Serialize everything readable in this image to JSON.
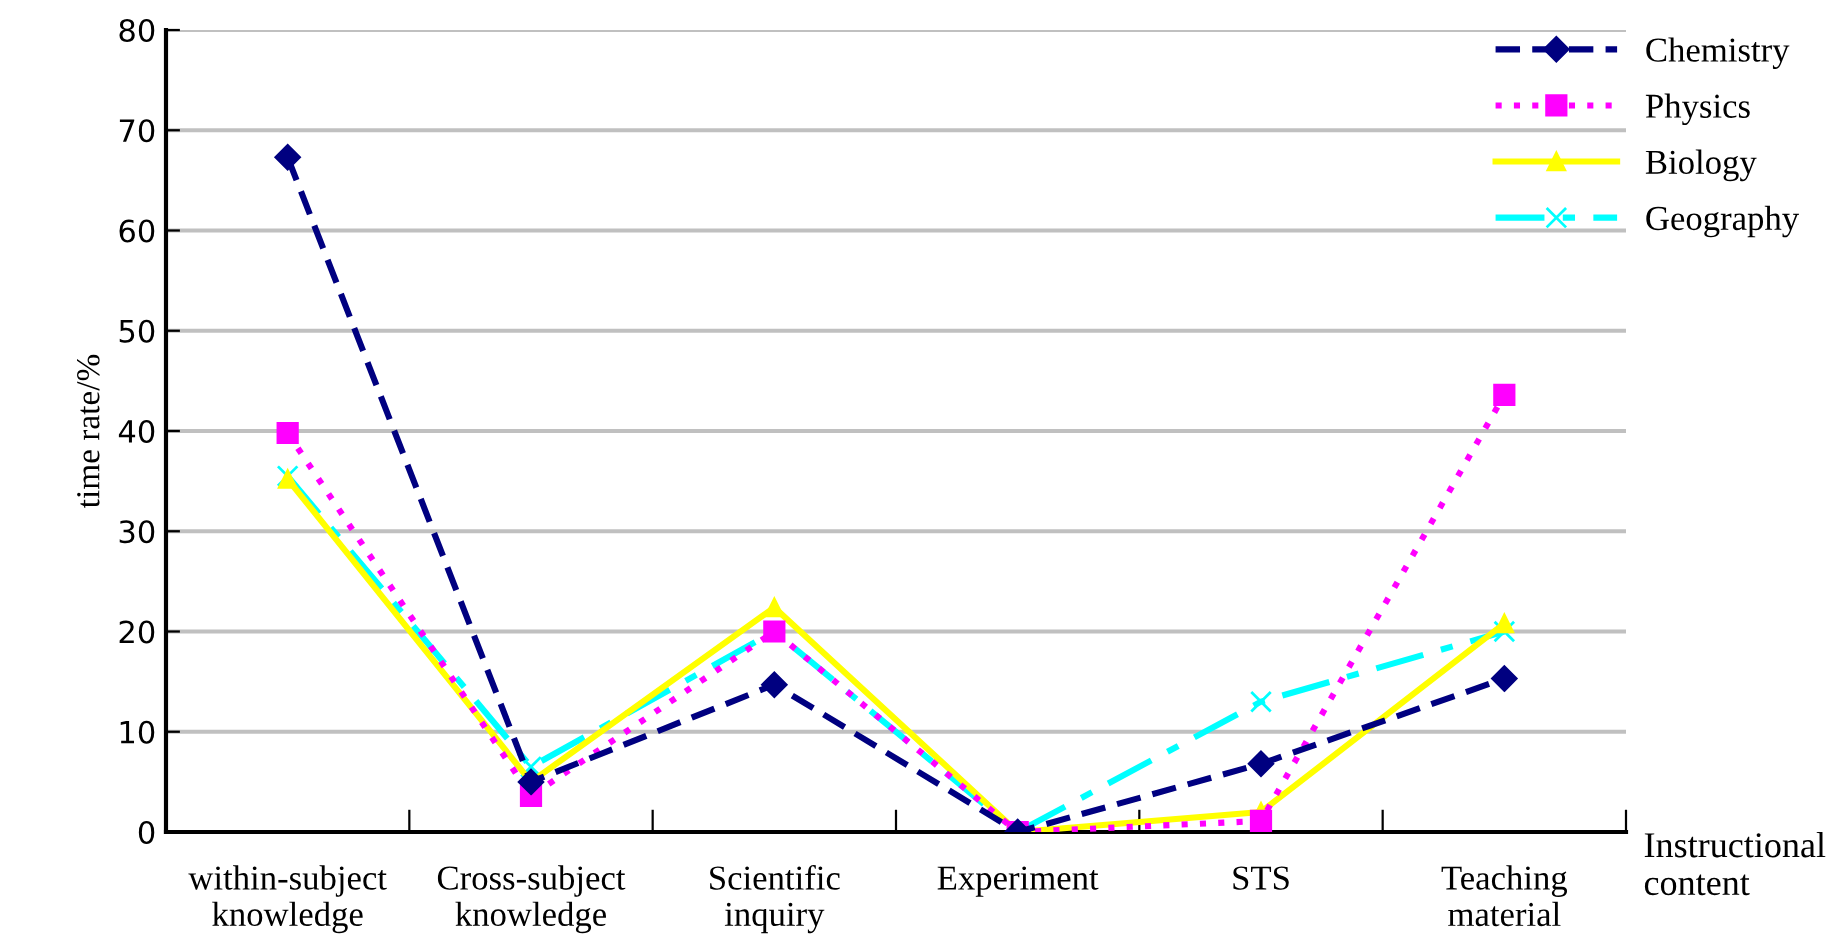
{
  "chart_data": {
    "type": "line",
    "xlabel": "Instructional content",
    "ylabel": "time rate/%",
    "categories": [
      "within-subject\nknowledge",
      "Cross-subject\nknowledge",
      "Scientific\ninquiry",
      "Experiment",
      "STS",
      "Teaching\nmaterial"
    ],
    "series": [
      {
        "name": "Chemistry",
        "color": "#000080",
        "marker": "diamond",
        "line_style": "dashed",
        "values": [
          67.3,
          5,
          14.7,
          0,
          6.8,
          15.3
        ]
      },
      {
        "name": "Physics",
        "color": "#ff00ff",
        "marker": "square",
        "line_style": "dotted",
        "values": [
          39.8,
          3.6,
          20,
          0,
          1.1,
          43.6
        ]
      },
      {
        "name": "Biology",
        "color": "#ffff00",
        "marker": "triangle",
        "line_style": "solid",
        "values": [
          35.2,
          5,
          22.4,
          0,
          2,
          20.8
        ]
      },
      {
        "name": "Geography",
        "color": "#00ffff",
        "marker": "cross",
        "line_style": "dashdot",
        "values": [
          35.5,
          6.5,
          20,
          0,
          13,
          20
        ]
      }
    ],
    "ylim": [
      0,
      80
    ],
    "yticks": [
      0,
      10,
      20,
      30,
      40,
      50,
      60,
      70,
      80
    ],
    "grid": "y",
    "legend": "top right"
  }
}
